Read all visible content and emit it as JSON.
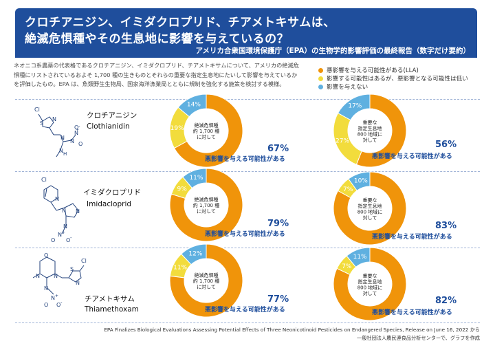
{
  "header": {
    "title_line1": "クロチアニジン、イミダクロプリド、チアメトキサムは、",
    "title_line2": "絶滅危惧種やその生息地に影響を与えているの？",
    "subtitle": "アメリカ合衆国環境保護庁（EPA）の生物学的影響評価の最終報告（数字だけ要約）"
  },
  "intro": {
    "line1": "ネオニコ系農薬の代表格であるクロチアニジン、イミダクロプリド、チアメトキサムについて、アメリカの絶滅危",
    "line2": "惧種にリストされているおよそ 1,700 種の生きものとそれらの重要な指定生息地にたいして影響を与えているか",
    "line3": "を評価したもの。EPA は、魚類野生生物局、国家海洋漁業局とともに規制を強化する施策を検討する模様。"
  },
  "legend": [
    {
      "label": "悪影響を与える可能性がある(LLA)",
      "color": "#f0940a"
    },
    {
      "label": "影響する可能性はあるが、悪影響となる可能性は低い",
      "color": "#f2dc3c"
    },
    {
      "label": "影響を与えない",
      "color": "#5fb0e0"
    }
  ],
  "colors": {
    "laa": "#f0940a",
    "nlaa": "#f2dc3c",
    "ne": "#5fb0e0",
    "accent": "#1f4e9c"
  },
  "compounds": [
    {
      "name_jp": "クロチアニジン",
      "name_en": "Clothianidin"
    },
    {
      "name_jp": "イミダクロプリド",
      "name_en": "Imidacloprid"
    },
    {
      "name_jp": "チアメトキサム",
      "name_en": "Thiamethoxam"
    }
  ],
  "adverse_caption": "悪影響を与える可能性がある",
  "chart_data": [
    {
      "type": "pie",
      "compound": "Clothianidin",
      "categories": [
        "悪影響を与える可能性がある(LLA)",
        "影響する可能性はあるが、悪影響となる可能性は低い",
        "影響を与えない"
      ],
      "values": [
        67,
        19,
        14
      ],
      "labels": [
        "67%",
        "19%",
        "14%"
      ],
      "center_text": [
        "絶滅危惧種",
        "約 1,700 種",
        "に対して"
      ],
      "headline": "67%"
    },
    {
      "type": "pie",
      "compound": "Clothianidin",
      "categories": [
        "悪影響を与える可能性がある(LLA)",
        "影響する可能性はあるが、悪影響となる可能性は低い",
        "影響を与えない"
      ],
      "values": [
        56,
        27,
        17
      ],
      "labels": [
        "56%",
        "27%",
        "17%"
      ],
      "center_text": [
        "重要な",
        "指定生息地",
        "800 地域に",
        "対して"
      ],
      "headline": "56%"
    },
    {
      "type": "pie",
      "compound": "Imidacloprid",
      "categories": [
        "悪影響を与える可能性がある(LLA)",
        "影響する可能性はあるが、悪影響となる可能性は低い",
        "影響を与えない"
      ],
      "values": [
        79,
        9,
        11
      ],
      "labels": [
        "79%",
        "9%",
        "11%"
      ],
      "center_text": [
        "絶滅危惧種",
        "約 1,700 種",
        "に対して"
      ],
      "headline": "79%"
    },
    {
      "type": "pie",
      "compound": "Imidacloprid",
      "categories": [
        "悪影響を与える可能性がある(LLA)",
        "影響する可能性はあるが、悪影響となる可能性は低い",
        "影響を与えない"
      ],
      "values": [
        83,
        7,
        10
      ],
      "labels": [
        "83%",
        "7%",
        "10%"
      ],
      "center_text": [
        "重要な",
        "指定生息地",
        "800 地域に",
        "対して"
      ],
      "headline": "83%"
    },
    {
      "type": "pie",
      "compound": "Thiamethoxam",
      "categories": [
        "悪影響を与える可能性がある(LLA)",
        "影響する可能性はあるが、悪影響となる可能性は低い",
        "影響を与えない"
      ],
      "values": [
        77,
        11,
        12
      ],
      "labels": [
        "77%",
        "11%",
        "12%"
      ],
      "center_text": [
        "絶滅危惧種",
        "約 1,700 種",
        "に対して"
      ],
      "headline": "77%"
    },
    {
      "type": "pie",
      "compound": "Thiamethoxam",
      "categories": [
        "悪影響を与える可能性がある(LLA)",
        "影響する可能性はあるが、悪影響となる可能性は低い",
        "影響を与えない"
      ],
      "values": [
        82,
        7,
        11
      ],
      "labels": [
        "82%",
        "7%",
        "11%"
      ],
      "center_text": [
        "重要な",
        "指定生息地",
        "800 地域に",
        "対して"
      ],
      "headline": "82%"
    }
  ],
  "struct_text": {
    "clothianidin": {
      "cl": "Cl",
      "s": "S",
      "n1": "N",
      "n2": "N",
      "n3": "N",
      "n4": "N",
      "n5": "N",
      "plus": "+",
      "o1": "O",
      "minus1": "-",
      "o2": "O",
      "nh": "N",
      "h": "H"
    },
    "imidacloprid": {
      "cl": "Cl",
      "n1": "N",
      "n2": "N",
      "n3": "N",
      "n4": "N",
      "n5": "N",
      "plus": "+",
      "o1": "O",
      "minus1": "-",
      "o2": "O"
    },
    "thiamethoxam": {
      "o_ring": "O",
      "n_a": "N",
      "n_b": "N",
      "n_c": "N",
      "n_d": "N",
      "s": "S",
      "cl": "Cl",
      "n_ring": "N",
      "plus": "+",
      "o1": "O",
      "minus1": "-",
      "o2": "O"
    }
  },
  "footer": {
    "line1": "EPA Finalizes Biological Evaluations Assessing Potential Effects of Three Neonicotinoid Pesticides on Endangered Species, Release on June 16, 2022 から",
    "line2": "一般社団法人農民連食品分析センターで、グラフを作成"
  }
}
